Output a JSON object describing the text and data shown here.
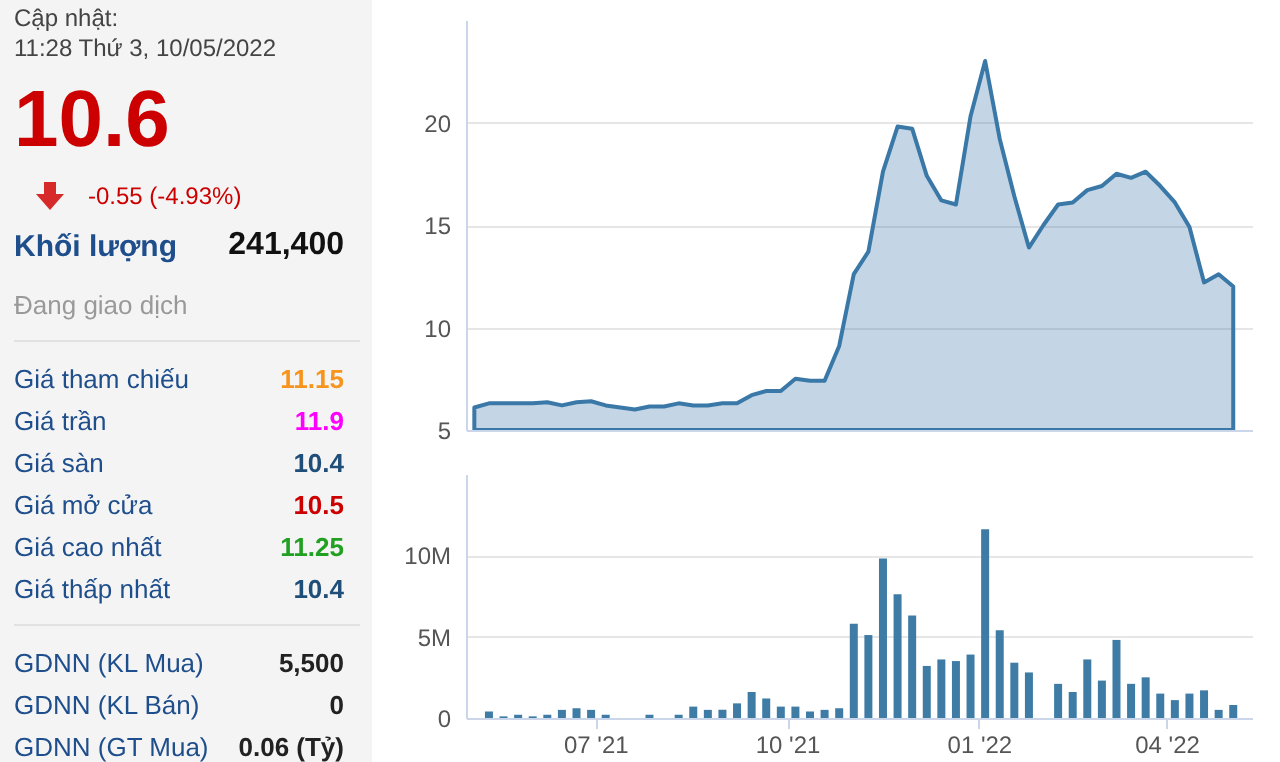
{
  "chart_data": [
    {
      "type": "other",
      "title": "Cập nhật:",
      "subtitle": "11:28 Thứ 3, 10/05/2022",
      "annotations": [
        "10.6",
        "-0.55 (-4.93%)",
        "Đang giao dịch"
      ],
      "categories": [
        "Khối lượng",
        "Giá tham chiếu",
        "Giá trần",
        "Giá sàn",
        "Giá mở cửa",
        "Giá cao nhất",
        "Giá thấp nhất",
        "GDNN (KL Mua)",
        "GDNN (KL Bán)",
        "GDNN (GT Mua)"
      ],
      "value_labels": [
        "241,400",
        "11.15",
        "11.9",
        "10.4",
        "10.5",
        "11.25",
        "10.4",
        "5,500",
        "0",
        "0.06 (Tỷ)"
      ]
    },
    {
      "type": "area",
      "x": [
        "2021-05-04",
        "2021-05-11",
        "2021-05-18",
        "2021-05-25",
        "2021-06-01",
        "2021-06-08",
        "2021-06-15",
        "2021-06-22",
        "2021-06-29",
        "2021-07-06",
        "2021-07-13",
        "2021-07-20",
        "2021-07-27",
        "2021-08-03",
        "2021-08-10",
        "2021-08-17",
        "2021-08-24",
        "2021-08-31",
        "2021-09-07",
        "2021-09-14",
        "2021-09-21",
        "2021-09-28",
        "2021-10-05",
        "2021-10-12",
        "2021-10-19",
        "2021-10-26",
        "2021-11-02",
        "2021-11-09",
        "2021-11-16",
        "2021-11-23",
        "2021-11-30",
        "2021-12-07",
        "2021-12-14",
        "2021-12-21",
        "2021-12-28",
        "2022-01-04",
        "2022-01-11",
        "2022-01-18",
        "2022-01-25",
        "2022-02-01",
        "2022-02-08",
        "2022-02-15",
        "2022-02-22",
        "2022-03-01",
        "2022-03-08",
        "2022-03-15",
        "2022-03-22",
        "2022-03-29",
        "2022-04-05",
        "2022-04-12",
        "2022-04-19",
        "2022-04-26",
        "2022-05-03"
      ],
      "series": [
        {
          "color": "#3a78a8",
          "values": [
            6.1,
            6.3,
            6.3,
            6.3,
            6.3,
            6.35,
            6.2,
            6.35,
            6.4,
            6.2,
            6.1,
            6.0,
            6.15,
            6.15,
            6.3,
            6.2,
            6.2,
            6.3,
            6.3,
            6.7,
            6.9,
            6.9,
            7.5,
            7.4,
            7.4,
            9.1,
            12.6,
            13.7,
            17.6,
            19.8,
            19.7,
            17.4,
            16.2,
            16.0,
            20.3,
            23.0,
            19.2,
            16.4,
            13.9,
            15.0,
            16.0,
            16.1,
            16.7,
            16.9,
            17.5,
            17.3,
            17.6,
            16.9,
            16.1,
            14.9,
            12.2,
            12.6,
            12.0
          ]
        }
      ],
      "xlim": [
        "2021-04-30",
        "2022-05-12"
      ],
      "ylim": [
        5,
        25
      ],
      "yticks": [
        5,
        10,
        15,
        20
      ],
      "grid": "y",
      "tick_labels": "y"
    },
    {
      "type": "bar",
      "x": [
        "2021-05-11",
        "2021-05-18",
        "2021-05-25",
        "2021-06-01",
        "2021-06-08",
        "2021-06-15",
        "2021-06-22",
        "2021-06-29",
        "2021-07-06",
        "2021-07-13",
        "2021-07-20",
        "2021-07-27",
        "2021-08-03",
        "2021-08-10",
        "2021-08-17",
        "2021-08-24",
        "2021-08-31",
        "2021-09-07",
        "2021-09-14",
        "2021-09-21",
        "2021-09-28",
        "2021-10-05",
        "2021-10-12",
        "2021-10-19",
        "2021-10-26",
        "2021-11-02",
        "2021-11-09",
        "2021-11-16",
        "2021-11-23",
        "2021-11-30",
        "2021-12-07",
        "2021-12-14",
        "2021-12-21",
        "2021-12-28",
        "2022-01-04",
        "2022-01-11",
        "2022-01-18",
        "2022-01-25",
        "2022-02-01",
        "2022-02-08",
        "2022-02-15",
        "2022-02-22",
        "2022-03-01",
        "2022-03-08",
        "2022-03-15",
        "2022-03-22",
        "2022-03-29",
        "2022-04-05",
        "2022-04-12",
        "2022-04-19",
        "2022-04-26",
        "2022-05-03"
      ],
      "series": [
        {
          "color": "#3e7ca6",
          "values": [
            0.4,
            0.1,
            0.2,
            0.1,
            0.2,
            0.5,
            0.6,
            0.5,
            0.2,
            null,
            null,
            0.2,
            null,
            0.2,
            0.7,
            0.5,
            0.5,
            0.9,
            1.6,
            1.2,
            0.7,
            0.7,
            0.4,
            0.5,
            0.6,
            5.8,
            5.1,
            9.8,
            7.6,
            6.3,
            3.2,
            3.6,
            3.5,
            3.9,
            11.6,
            5.4,
            3.4,
            2.8,
            null,
            2.1,
            1.6,
            3.6,
            2.3,
            4.8,
            2.1,
            2.5,
            1.5,
            1.1,
            1.5,
            1.7,
            0.5,
            0.8
          ]
        }
      ],
      "xlim": [
        "2021-04-30",
        "2022-05-12"
      ],
      "xticks": [
        {
          "value": "2021-07-01",
          "label": "07 '21"
        },
        {
          "value": "2021-10-01",
          "label": "10 '21"
        },
        {
          "value": "2022-01-01",
          "label": "01 '22"
        },
        {
          "value": "2022-04-01",
          "label": "04 '22"
        }
      ],
      "ylim": [
        0,
        15
      ],
      "yticks": [
        0,
        {
          "value": 5,
          "label": "5M"
        },
        {
          "value": 10,
          "label": "10M"
        }
      ],
      "grid": "y"
    }
  ]
}
